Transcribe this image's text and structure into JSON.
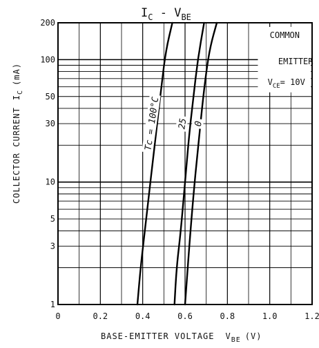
{
  "chart_data": {
    "type": "line",
    "title": {
      "main": "I",
      "main_sub": "C",
      "dash": " - ",
      "var": "V",
      "var_sub": "BE"
    },
    "xlabel": {
      "text": "BASE-EMITTER VOLTAGE",
      "symbol": "V",
      "symbol_sub": "BE",
      "unit": "(V)"
    },
    "ylabel": {
      "text": "COLLECTOR CURRENT",
      "symbol": "I",
      "symbol_sub": "C",
      "unit": "(mA)"
    },
    "xlim": [
      0,
      1.2
    ],
    "ylim": [
      1,
      200
    ],
    "y_scale": "log",
    "x_ticks": [
      0,
      0.2,
      0.4,
      0.6,
      0.8,
      1.0,
      1.2
    ],
    "x_tick_labels": [
      "0",
      "0.2",
      "0.4",
      "0.6",
      "0.8",
      "1.0",
      "1.2"
    ],
    "y_tick_values": [
      1,
      3,
      5,
      10,
      30,
      50,
      100,
      200
    ],
    "y_tick_labels": [
      "1",
      "3",
      "5",
      "10",
      "30",
      "50",
      "100",
      "200"
    ],
    "x_minor_grid": [
      0.1,
      0.3,
      0.5,
      0.7,
      0.9,
      1.1
    ],
    "y_grid": [
      2,
      3,
      4,
      5,
      6,
      7,
      8,
      9,
      10,
      20,
      30,
      40,
      50,
      60,
      70,
      80,
      90,
      100
    ],
    "grid": true,
    "annotation": {
      "lines": [
        "COMMON",
        "EMITTER"
      ],
      "vce_symbol": "V",
      "vce_sub": "CE",
      "vce_value": "= 10V",
      "placement": "top-right"
    },
    "series": [
      {
        "name": "Tc = 100°C",
        "points": [
          [
            0.375,
            1
          ],
          [
            0.39,
            2
          ],
          [
            0.41,
            4
          ],
          [
            0.43,
            8
          ],
          [
            0.45,
            16
          ],
          [
            0.47,
            32
          ],
          [
            0.49,
            64
          ],
          [
            0.51,
            120
          ],
          [
            0.54,
            200
          ]
        ]
      },
      {
        "name": "25",
        "points": [
          [
            0.55,
            1
          ],
          [
            0.56,
            2
          ],
          [
            0.58,
            4
          ],
          [
            0.6,
            10
          ],
          [
            0.62,
            25
          ],
          [
            0.64,
            50
          ],
          [
            0.66,
            100
          ],
          [
            0.69,
            200
          ]
        ]
      },
      {
        "name": "0",
        "points": [
          [
            0.6,
            1
          ],
          [
            0.62,
            3
          ],
          [
            0.64,
            8
          ],
          [
            0.66,
            18
          ],
          [
            0.68,
            40
          ],
          [
            0.7,
            80
          ],
          [
            0.72,
            130
          ],
          [
            0.75,
            200
          ]
        ]
      }
    ]
  }
}
